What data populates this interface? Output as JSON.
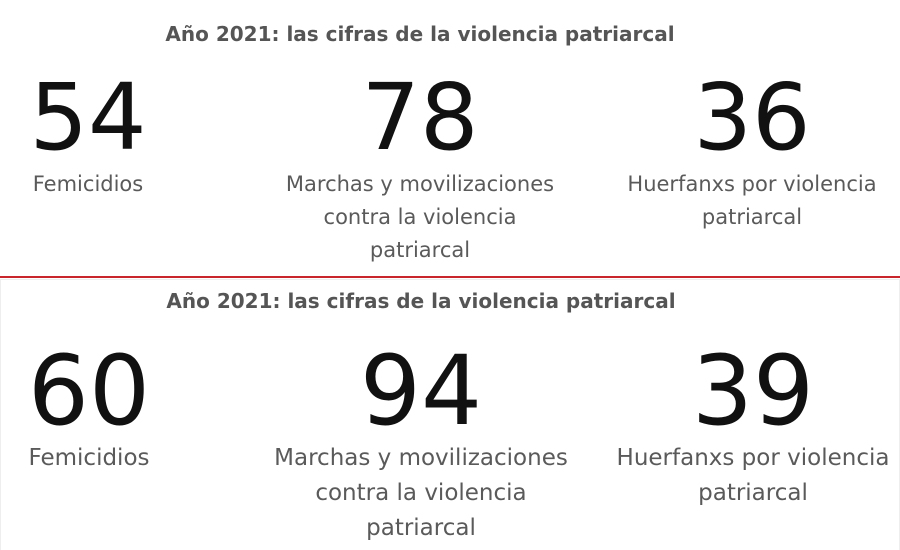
{
  "panels": [
    {
      "title": "Año 2021: las cifras de la violencia patriarcal",
      "stats": [
        {
          "value": 54,
          "label": "Femicidios"
        },
        {
          "value": 78,
          "label": "Marchas y movilizaciones contra la violencia patriarcal"
        },
        {
          "value": 36,
          "label": "Huerfanxs por violencia patriarcal"
        }
      ]
    },
    {
      "title": "Año 2021: las cifras de la violencia patriarcal",
      "stats": [
        {
          "value": 60,
          "label": "Femicidios"
        },
        {
          "value": 94,
          "label": "Marchas y movilizaciones contra la violencia patriarcal"
        },
        {
          "value": 39,
          "label": "Huerfanxs por violencia patriarcal"
        }
      ]
    }
  ]
}
